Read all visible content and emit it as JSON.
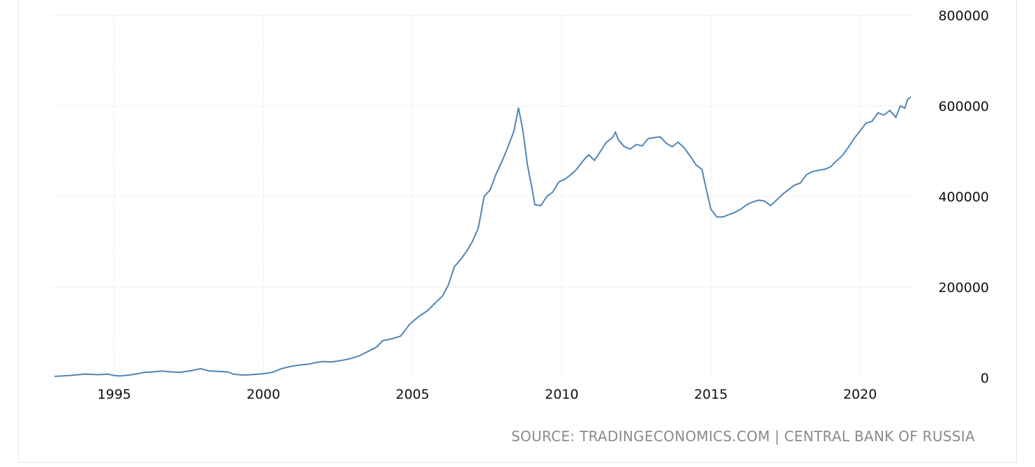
{
  "chart_data": {
    "type": "line",
    "title": "",
    "xlabel": "",
    "ylabel": "",
    "xlim": [
      1992.9,
      2021.75
    ],
    "ylim": [
      0,
      800000
    ],
    "x_ticks": [
      1995,
      2000,
      2005,
      2010,
      2015,
      2020
    ],
    "y_ticks": [
      0,
      200000,
      400000,
      600000,
      800000
    ],
    "grid": true,
    "line_color": "#4e85b8",
    "series": [
      {
        "points": [
          [
            1993.0,
            3000
          ],
          [
            1993.5,
            5000
          ],
          [
            1994.0,
            8000
          ],
          [
            1994.5,
            7000
          ],
          [
            1994.8,
            8000
          ],
          [
            1995.0,
            5000
          ],
          [
            1995.2,
            4000
          ],
          [
            1995.5,
            6000
          ],
          [
            1995.8,
            9000
          ],
          [
            1996.0,
            12000
          ],
          [
            1996.3,
            13000
          ],
          [
            1996.6,
            15000
          ],
          [
            1996.9,
            13000
          ],
          [
            1997.2,
            12000
          ],
          [
            1997.6,
            16000
          ],
          [
            1997.9,
            20000
          ],
          [
            1998.2,
            15000
          ],
          [
            1998.5,
            14000
          ],
          [
            1998.8,
            13000
          ],
          [
            1999.0,
            8000
          ],
          [
            1999.3,
            6000
          ],
          [
            1999.6,
            7000
          ],
          [
            2000.0,
            9000
          ],
          [
            2000.3,
            12000
          ],
          [
            2000.6,
            20000
          ],
          [
            2000.9,
            25000
          ],
          [
            2001.2,
            28000
          ],
          [
            2001.5,
            30000
          ],
          [
            2001.8,
            34000
          ],
          [
            2002.0,
            36000
          ],
          [
            2002.3,
            35000
          ],
          [
            2002.6,
            38000
          ],
          [
            2002.9,
            42000
          ],
          [
            2003.2,
            48000
          ],
          [
            2003.5,
            58000
          ],
          [
            2003.8,
            68000
          ],
          [
            2004.0,
            82000
          ],
          [
            2004.3,
            86000
          ],
          [
            2004.6,
            92000
          ],
          [
            2004.9,
            118000
          ],
          [
            2005.2,
            135000
          ],
          [
            2005.5,
            148000
          ],
          [
            2005.8,
            168000
          ],
          [
            2006.0,
            180000
          ],
          [
            2006.2,
            205000
          ],
          [
            2006.4,
            245000
          ],
          [
            2006.6,
            260000
          ],
          [
            2006.8,
            278000
          ],
          [
            2007.0,
            300000
          ],
          [
            2007.2,
            330000
          ],
          [
            2007.4,
            400000
          ],
          [
            2007.6,
            415000
          ],
          [
            2007.8,
            450000
          ],
          [
            2008.0,
            478000
          ],
          [
            2008.2,
            510000
          ],
          [
            2008.4,
            545000
          ],
          [
            2008.55,
            596000
          ],
          [
            2008.7,
            545000
          ],
          [
            2008.85,
            470000
          ],
          [
            2009.0,
            420000
          ],
          [
            2009.1,
            382000
          ],
          [
            2009.3,
            380000
          ],
          [
            2009.5,
            400000
          ],
          [
            2009.7,
            410000
          ],
          [
            2009.9,
            432000
          ],
          [
            2010.1,
            438000
          ],
          [
            2010.3,
            448000
          ],
          [
            2010.5,
            460000
          ],
          [
            2010.7,
            478000
          ],
          [
            2010.9,
            492000
          ],
          [
            2011.1,
            480000
          ],
          [
            2011.3,
            500000
          ],
          [
            2011.5,
            520000
          ],
          [
            2011.7,
            530000
          ],
          [
            2011.8,
            542000
          ],
          [
            2011.9,
            525000
          ],
          [
            2012.1,
            510000
          ],
          [
            2012.3,
            505000
          ],
          [
            2012.5,
            515000
          ],
          [
            2012.7,
            512000
          ],
          [
            2012.9,
            528000
          ],
          [
            2013.1,
            530000
          ],
          [
            2013.3,
            532000
          ],
          [
            2013.5,
            518000
          ],
          [
            2013.7,
            510000
          ],
          [
            2013.9,
            520000
          ],
          [
            2014.1,
            508000
          ],
          [
            2014.3,
            490000
          ],
          [
            2014.5,
            470000
          ],
          [
            2014.7,
            460000
          ],
          [
            2014.85,
            415000
          ],
          [
            2015.0,
            372000
          ],
          [
            2015.2,
            355000
          ],
          [
            2015.4,
            355000
          ],
          [
            2015.6,
            360000
          ],
          [
            2015.8,
            365000
          ],
          [
            2016.0,
            372000
          ],
          [
            2016.2,
            382000
          ],
          [
            2016.4,
            388000
          ],
          [
            2016.6,
            392000
          ],
          [
            2016.8,
            390000
          ],
          [
            2017.0,
            380000
          ],
          [
            2017.2,
            392000
          ],
          [
            2017.4,
            405000
          ],
          [
            2017.6,
            415000
          ],
          [
            2017.8,
            425000
          ],
          [
            2018.0,
            430000
          ],
          [
            2018.2,
            448000
          ],
          [
            2018.4,
            455000
          ],
          [
            2018.6,
            458000
          ],
          [
            2018.8,
            460000
          ],
          [
            2019.0,
            465000
          ],
          [
            2019.2,
            478000
          ],
          [
            2019.4,
            490000
          ],
          [
            2019.6,
            508000
          ],
          [
            2019.8,
            528000
          ],
          [
            2020.0,
            545000
          ],
          [
            2020.2,
            562000
          ],
          [
            2020.4,
            566000
          ],
          [
            2020.6,
            585000
          ],
          [
            2020.8,
            580000
          ],
          [
            2021.0,
            590000
          ],
          [
            2021.2,
            575000
          ],
          [
            2021.35,
            600000
          ],
          [
            2021.5,
            595000
          ],
          [
            2021.6,
            615000
          ],
          [
            2021.7,
            620000
          ]
        ]
      }
    ]
  },
  "source_text": "SOURCE: TRADINGECONOMICS.COM | CENTRAL BANK OF RUSSIA"
}
